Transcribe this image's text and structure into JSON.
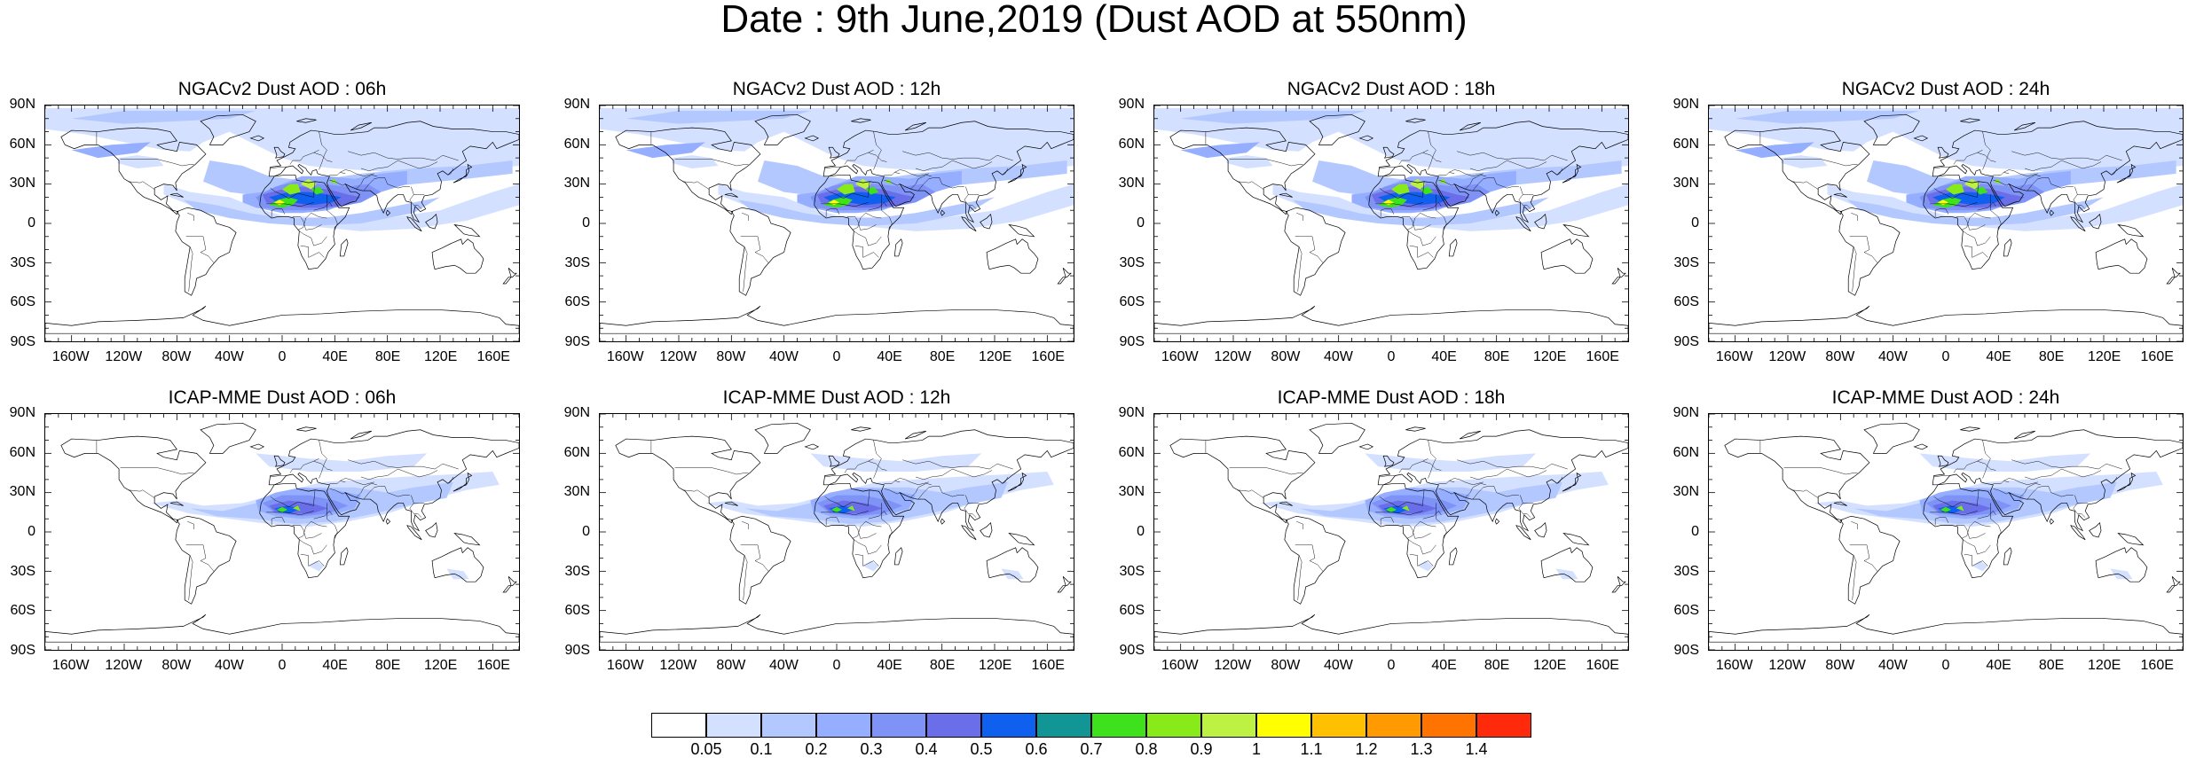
{
  "figure": {
    "title": "Date : 9th June,2019 (Dust AOD at 550nm)"
  },
  "axes": {
    "y_ticks": [
      "90N",
      "60N",
      "30N",
      "0",
      "30S",
      "60S",
      "90S"
    ],
    "x_ticks": [
      "160W",
      "120W",
      "80W",
      "40W",
      "0",
      "40E",
      "80E",
      "120E",
      "160E"
    ],
    "y_values": [
      90,
      60,
      30,
      0,
      -30,
      -60,
      -90
    ],
    "x_values": [
      -160,
      -120,
      -80,
      -40,
      0,
      40,
      80,
      120,
      160
    ]
  },
  "panels": [
    {
      "title": "NGACv2 Dust AOD : 06h",
      "model": "NGACv2",
      "hour": "06h"
    },
    {
      "title": "NGACv2 Dust AOD : 12h",
      "model": "NGACv2",
      "hour": "12h"
    },
    {
      "title": "NGACv2 Dust AOD : 18h",
      "model": "NGACv2",
      "hour": "18h"
    },
    {
      "title": "NGACv2 Dust AOD : 24h",
      "model": "NGACv2",
      "hour": "24h"
    },
    {
      "title": "ICAP-MME Dust AOD : 06h",
      "model": "ICAP-MME",
      "hour": "06h"
    },
    {
      "title": "ICAP-MME Dust AOD : 12h",
      "model": "ICAP-MME",
      "hour": "12h"
    },
    {
      "title": "ICAP-MME Dust AOD : 18h",
      "model": "ICAP-MME",
      "hour": "18h"
    },
    {
      "title": "ICAP-MME Dust AOD : 24h",
      "model": "ICAP-MME",
      "hour": "24h"
    }
  ],
  "colorbar": {
    "labels": [
      "0.05",
      "0.1",
      "0.2",
      "0.3",
      "0.4",
      "0.5",
      "0.6",
      "0.7",
      "0.8",
      "0.9",
      "1",
      "1.1",
      "1.2",
      "1.3",
      "1.4"
    ],
    "colors": [
      "#ffffff",
      "#d4e0ff",
      "#b3c8ff",
      "#95aeff",
      "#7f92f5",
      "#6a6ee8",
      "#1060f0",
      "#119595",
      "#3fe01c",
      "#88ea18",
      "#bdf242",
      "#ffff00",
      "#ffc000",
      "#ff9a00",
      "#ff7400",
      "#ff2a0c"
    ]
  },
  "colors": {
    "coastline": "#000000",
    "background": "#ffffff"
  }
}
